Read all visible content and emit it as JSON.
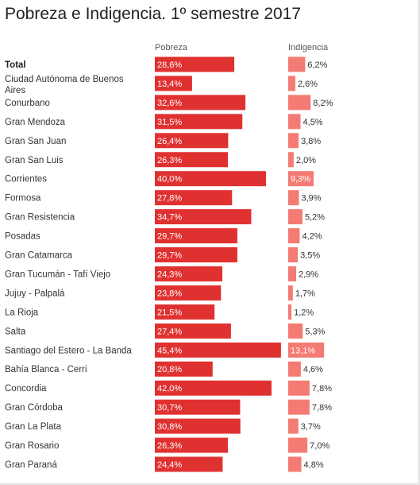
{
  "title": "Pobreza e Indigencia. 1º semestre 2017",
  "chart_data": {
    "type": "bar",
    "title": "Pobreza e Indigencia. 1º semestre 2017",
    "categories": [
      "Total",
      [
        "Ciudad Autónoma de Buenos",
        "Aires"
      ],
      "Conurbano",
      "Gran Mendoza",
      "Gran San Juan",
      "Gran San Luis",
      "Corrientes",
      "Formosa",
      "Gran Resistencia",
      "Posadas",
      "Gran Catamarca",
      "Gran Tucumán - Tafí Viejo",
      "Jujuy - Palpalá",
      "La Rioja",
      "Salta",
      "Santiago del Estero - La Banda",
      "Bahía Blanca - Cerri",
      "Concordia",
      "Gran Córdoba",
      "Gran La Plata",
      "Gran Rosario",
      "Gran Paraná"
    ],
    "series": [
      {
        "name": "Pobreza",
        "color": "#e03131",
        "values": [
          28.6,
          13.4,
          32.6,
          31.5,
          26.4,
          26.3,
          40.0,
          27.8,
          34.7,
          29.7,
          29.7,
          24.3,
          23.8,
          21.5,
          27.4,
          45.4,
          20.8,
          42.0,
          30.7,
          30.8,
          26.3,
          24.4
        ],
        "labels": [
          "28,6%",
          "13,4%",
          "32,6%",
          "31,5%",
          "26,4%",
          "26,3%",
          "40,0%",
          "27,8%",
          "34,7%",
          "29,7%",
          "29,7%",
          "24,3%",
          "23,8%",
          "21,5%",
          "27,4%",
          "45,4%",
          "20,8%",
          "42,0%",
          "30,7%",
          "30,8%",
          "26,3%",
          "24,4%"
        ]
      },
      {
        "name": "Indigencia",
        "color": "#f47b74",
        "values": [
          6.2,
          2.6,
          8.2,
          4.5,
          3.8,
          2.0,
          9.3,
          3.9,
          5.2,
          4.2,
          3.5,
          2.9,
          1.7,
          1.2,
          5.3,
          13.1,
          4.6,
          7.8,
          7.8,
          3.7,
          7.0,
          4.8
        ],
        "labels": [
          "6,2%",
          "2,6%",
          "8,2%",
          "4,5%",
          "3,8%",
          "2,0%",
          "9,3%",
          "3,9%",
          "5,2%",
          "4,2%",
          "3,5%",
          "2,9%",
          "1,7%",
          "1,2%",
          "5,3%",
          "13,1%",
          "4,6%",
          "7,8%",
          "7,8%",
          "3,7%",
          "7,0%",
          "4,8%"
        ]
      }
    ],
    "bold_categories": [
      "Total"
    ]
  }
}
